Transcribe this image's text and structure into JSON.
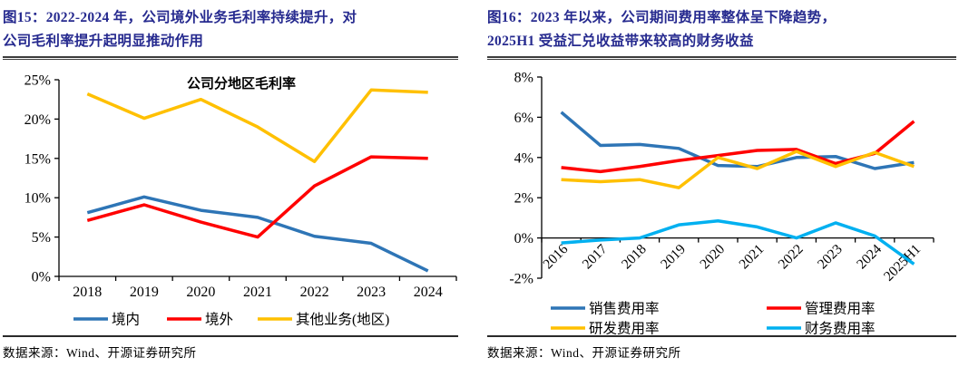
{
  "colors": {
    "title_navy": "#262A8F",
    "axis_black": "#000000",
    "rule_gray": "#3d3d3d",
    "series_blue": "#2E75B6",
    "series_red": "#FF0000",
    "series_yellow": "#FFC000",
    "series_cyan": "#00B0F0"
  },
  "panels": [
    {
      "title_lines": [
        "图15：2022-2024 年，公司境外业务毛利率持续提升，对",
        "公司毛利率提升起明显推动作用"
      ],
      "source": "数据来源：Wind、开源证券研究所"
    },
    {
      "title_lines": [
        "图16：2023 年以来，公司期间费用率整体呈下降趋势，",
        "2025H1 受益汇兑收益带来较高的财务收益"
      ],
      "source": "数据来源：Wind、开源证券研究所"
    }
  ],
  "chart_data": [
    {
      "type": "line",
      "title": "公司分地区毛利率",
      "categories": [
        "2018",
        "2019",
        "2020",
        "2021",
        "2022",
        "2023",
        "2024"
      ],
      "series": [
        {
          "name": "境内",
          "color": "#2E75B6",
          "values": [
            8.1,
            10.1,
            8.4,
            7.5,
            5.1,
            4.2,
            0.7
          ]
        },
        {
          "name": "境外",
          "color": "#FF0000",
          "values": [
            7.1,
            9.1,
            6.9,
            5.0,
            11.5,
            15.2,
            15.0
          ]
        },
        {
          "name": "其他业务(地区)",
          "color": "#FFC000",
          "values": [
            23.2,
            20.1,
            22.5,
            19.0,
            14.6,
            23.7,
            23.4
          ]
        }
      ],
      "xlabel": "",
      "ylabel": "",
      "ylim": [
        0,
        25
      ],
      "yticks": [
        0,
        5,
        10,
        15,
        20,
        25
      ],
      "ytick_labels": [
        "0%",
        "5%",
        "10%",
        "15%",
        "20%",
        "25%"
      ],
      "x_axis_at": 0,
      "xtick_rotation": 0,
      "grid": false,
      "legend_position": "bottom-row"
    },
    {
      "type": "line",
      "title": "",
      "categories": [
        "2016",
        "2017",
        "2018",
        "2019",
        "2020",
        "2021",
        "2022",
        "2023",
        "2024",
        "2025H1"
      ],
      "series": [
        {
          "name": "销售费用率",
          "color": "#2E75B6",
          "values": [
            6.25,
            4.6,
            4.65,
            4.45,
            3.6,
            3.55,
            4.0,
            4.05,
            3.45,
            3.75
          ]
        },
        {
          "name": "管理费用率",
          "color": "#FF0000",
          "values": [
            3.5,
            3.3,
            3.55,
            3.85,
            4.1,
            4.35,
            4.4,
            3.7,
            4.2,
            5.8
          ]
        },
        {
          "name": "研发费用率",
          "color": "#FFC000",
          "values": [
            2.9,
            2.8,
            2.9,
            2.5,
            4.0,
            3.45,
            4.3,
            3.55,
            4.25,
            3.55
          ]
        },
        {
          "name": "财务费用率",
          "color": "#00B0F0",
          "values": [
            -0.25,
            -0.1,
            0.0,
            0.65,
            0.85,
            0.55,
            0.0,
            0.75,
            0.1,
            -1.3
          ]
        }
      ],
      "xlabel": "",
      "ylabel": "",
      "ylim": [
        -2,
        8
      ],
      "yticks": [
        -2,
        0,
        2,
        4,
        6,
        8
      ],
      "ytick_labels": [
        "-2%",
        "0%",
        "2%",
        "4%",
        "6%",
        "8%"
      ],
      "x_axis_at": 0,
      "xtick_rotation": -45,
      "grid": false,
      "legend_position": "bottom-2col"
    }
  ]
}
